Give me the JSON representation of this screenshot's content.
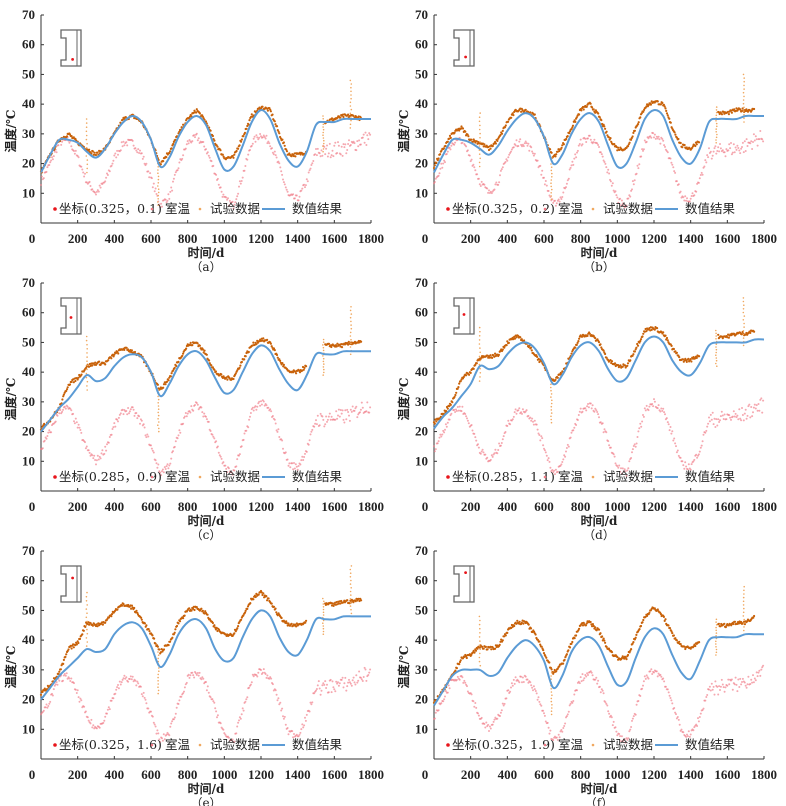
{
  "colors": {
    "measured": "#c8620a",
    "room": "#f07a86",
    "numerical": "#5b9bd5",
    "point": "#e8151b",
    "axis": "#333333",
    "inset": "#666666"
  },
  "legend": {
    "room_label": "室温",
    "measured_label": "试验数据",
    "numerical_label": "数值结果"
  },
  "chart_data": [
    {
      "id": "a",
      "type": "line",
      "caption": "（a）",
      "xlabel": "时间/d",
      "ylabel": "温度/℃",
      "xlim": [
        0,
        1800
      ],
      "ylim": [
        0,
        70
      ],
      "xticks": [
        0,
        200,
        400,
        600,
        800,
        1000,
        1200,
        1400,
        1600,
        1800
      ],
      "yticks": [
        10,
        20,
        30,
        40,
        50,
        60,
        70
      ],
      "legend_position": "bottom",
      "point_label": "坐标(0.325，0.1)",
      "inset_point": [
        0.7,
        0.88
      ],
      "x": [
        0,
        50,
        100,
        150,
        200,
        250,
        300,
        350,
        400,
        450,
        500,
        550,
        600,
        650,
        700,
        750,
        800,
        850,
        900,
        950,
        1000,
        1050,
        1100,
        1150,
        1200,
        1250,
        1300,
        1350,
        1400,
        1450,
        1500,
        1550,
        1600,
        1650,
        1700,
        1750,
        1800
      ],
      "series": [
        {
          "name": "试验数据",
          "values": [
            17,
            23,
            28,
            30,
            27,
            25,
            23,
            25,
            30,
            35,
            36,
            34,
            28,
            20,
            24,
            30,
            35,
            38,
            34,
            27,
            22,
            22,
            29,
            36,
            39,
            38,
            30,
            23,
            23,
            24,
            null,
            34,
            35,
            36,
            36,
            35,
            null
          ]
        },
        {
          "name": "室温",
          "values": [
            14,
            20,
            27,
            28,
            22,
            14,
            10,
            14,
            22,
            27,
            27,
            23,
            15,
            6,
            9,
            19,
            27,
            29,
            25,
            17,
            8,
            6,
            16,
            27,
            30,
            27,
            19,
            9,
            8,
            14,
            24,
            24,
            25,
            25,
            26,
            28,
            29
          ]
        },
        {
          "name": "数值结果",
          "values": [
            17,
            23,
            28,
            28,
            27,
            24,
            22,
            25,
            30,
            34,
            36,
            34,
            28,
            19,
            22,
            29,
            34,
            36,
            33,
            25,
            18,
            19,
            26,
            34,
            38,
            35,
            27,
            21,
            19,
            24,
            33,
            34,
            34,
            35,
            35,
            35,
            35
          ]
        }
      ]
    },
    {
      "id": "b",
      "type": "line",
      "caption": "（b）",
      "xlabel": "时间/d",
      "ylabel": "温度/℃",
      "xlim": [
        0,
        1800
      ],
      "ylim": [
        0,
        70
      ],
      "xticks": [
        0,
        200,
        400,
        600,
        800,
        1000,
        1200,
        1400,
        1600,
        1800
      ],
      "yticks": [
        10,
        20,
        30,
        40,
        50,
        60,
        70
      ],
      "legend_position": "bottom",
      "point_label": "坐标(0.325，0.2)",
      "inset_point": [
        0.7,
        0.8
      ],
      "x": [
        0,
        50,
        100,
        150,
        200,
        250,
        300,
        350,
        400,
        450,
        500,
        550,
        600,
        650,
        700,
        750,
        800,
        850,
        900,
        950,
        1000,
        1050,
        1100,
        1150,
        1200,
        1250,
        1300,
        1350,
        1400,
        1450,
        1500,
        1550,
        1600,
        1650,
        1700,
        1750,
        1800
      ],
      "series": [
        {
          "name": "试验数据",
          "values": [
            19,
            25,
            30,
            32,
            28,
            27,
            25,
            28,
            34,
            38,
            38,
            36,
            29,
            22,
            26,
            32,
            38,
            40,
            36,
            29,
            25,
            25,
            32,
            39,
            41,
            40,
            32,
            26,
            25,
            28,
            null,
            37,
            37,
            38,
            38,
            38,
            null
          ]
        },
        {
          "name": "室温",
          "values": [
            14,
            20,
            27,
            28,
            22,
            14,
            10,
            14,
            22,
            27,
            27,
            23,
            15,
            6,
            9,
            19,
            27,
            29,
            25,
            17,
            8,
            6,
            16,
            27,
            30,
            27,
            19,
            9,
            8,
            14,
            24,
            24,
            25,
            25,
            26,
            28,
            29
          ]
        },
        {
          "name": "数值结果",
          "values": [
            17,
            23,
            28,
            28,
            27,
            25,
            23,
            26,
            31,
            35,
            37,
            35,
            29,
            20,
            23,
            30,
            35,
            37,
            34,
            26,
            19,
            20,
            27,
            35,
            38,
            36,
            28,
            22,
            20,
            25,
            34,
            35,
            35,
            35,
            36,
            36,
            36
          ]
        }
      ]
    },
    {
      "id": "c",
      "type": "line",
      "caption": "（c）",
      "xlabel": "时间/d",
      "ylabel": "温度/℃",
      "xlim": [
        0,
        1800
      ],
      "ylim": [
        0,
        70
      ],
      "xticks": [
        0,
        200,
        400,
        600,
        800,
        1000,
        1200,
        1400,
        1600,
        1800
      ],
      "yticks": [
        10,
        20,
        30,
        40,
        50,
        60,
        70
      ],
      "legend_position": "bottom",
      "point_label": "坐标(0.285，0.9)",
      "inset_point": [
        0.5,
        0.55
      ],
      "x": [
        0,
        50,
        100,
        150,
        200,
        250,
        300,
        350,
        400,
        450,
        500,
        550,
        600,
        650,
        700,
        750,
        800,
        850,
        900,
        950,
        1000,
        1050,
        1100,
        1150,
        1200,
        1250,
        1300,
        1350,
        1400,
        1450,
        1500,
        1550,
        1600,
        1650,
        1700,
        1750,
        1800
      ],
      "series": [
        {
          "name": "试验数据",
          "values": [
            21,
            24,
            28,
            36,
            38,
            42,
            43,
            43,
            46,
            48,
            47,
            45,
            40,
            34,
            38,
            44,
            49,
            50,
            46,
            40,
            38,
            38,
            44,
            49,
            51,
            50,
            44,
            40,
            40,
            42,
            null,
            49,
            49,
            49,
            50,
            50,
            null
          ]
        },
        {
          "name": "室温",
          "values": [
            14,
            20,
            27,
            28,
            22,
            14,
            10,
            14,
            22,
            27,
            27,
            23,
            15,
            6,
            9,
            19,
            27,
            29,
            25,
            17,
            8,
            6,
            16,
            27,
            30,
            27,
            19,
            9,
            8,
            14,
            24,
            24,
            25,
            25,
            26,
            28,
            29
          ]
        },
        {
          "name": "数值结果",
          "values": [
            20,
            24,
            28,
            31,
            35,
            39,
            37,
            38,
            42,
            45,
            46,
            45,
            40,
            32,
            36,
            42,
            46,
            47,
            44,
            38,
            33,
            34,
            40,
            46,
            49,
            47,
            41,
            36,
            34,
            39,
            46,
            46,
            46,
            47,
            47,
            47,
            47
          ]
        }
      ]
    },
    {
      "id": "d",
      "type": "line",
      "caption": "（d）",
      "xlabel": "时间/d",
      "ylabel": "温度/℃",
      "xlim": [
        0,
        1800
      ],
      "ylim": [
        0,
        70
      ],
      "xticks": [
        0,
        200,
        400,
        600,
        800,
        1000,
        1200,
        1400,
        1600,
        1800
      ],
      "yticks": [
        10,
        20,
        30,
        40,
        50,
        60,
        70
      ],
      "legend_position": "bottom",
      "point_label": "坐标(0.285，1.1)",
      "inset_point": [
        0.5,
        0.45
      ],
      "x": [
        0,
        50,
        100,
        150,
        200,
        250,
        300,
        350,
        400,
        450,
        500,
        550,
        600,
        650,
        700,
        750,
        800,
        850,
        900,
        950,
        1000,
        1050,
        1100,
        1150,
        1200,
        1250,
        1300,
        1350,
        1400,
        1450,
        1500,
        1550,
        1600,
        1650,
        1700,
        1750,
        1800
      ],
      "series": [
        {
          "name": "试验数据",
          "values": [
            23,
            26,
            30,
            38,
            40,
            45,
            45,
            46,
            50,
            52,
            50,
            46,
            42,
            37,
            40,
            46,
            52,
            53,
            50,
            44,
            42,
            42,
            48,
            54,
            55,
            53,
            48,
            44,
            44,
            46,
            null,
            52,
            52,
            53,
            53,
            54,
            null
          ]
        },
        {
          "name": "室温",
          "values": [
            14,
            20,
            27,
            28,
            22,
            14,
            10,
            14,
            22,
            27,
            27,
            23,
            15,
            6,
            9,
            19,
            27,
            29,
            25,
            17,
            8,
            6,
            16,
            27,
            30,
            27,
            19,
            9,
            8,
            14,
            24,
            24,
            25,
            25,
            26,
            28,
            29
          ]
        },
        {
          "name": "数值结果",
          "values": [
            21,
            25,
            28,
            32,
            36,
            42,
            41,
            42,
            46,
            49,
            50,
            48,
            43,
            36,
            39,
            45,
            49,
            50,
            47,
            41,
            37,
            38,
            44,
            50,
            52,
            50,
            44,
            40,
            39,
            43,
            49,
            50,
            50,
            50,
            50,
            51,
            51
          ]
        }
      ]
    },
    {
      "id": "e",
      "type": "line",
      "caption": "（e）",
      "xlabel": "时间/d",
      "ylabel": "温度/℃",
      "xlim": [
        0,
        1800
      ],
      "ylim": [
        0,
        70
      ],
      "xticks": [
        0,
        200,
        400,
        600,
        800,
        1000,
        1200,
        1400,
        1600,
        1800
      ],
      "yticks": [
        10,
        20,
        30,
        40,
        50,
        60,
        70
      ],
      "legend_position": "bottom",
      "point_label": "坐标(0.325，1.6)",
      "inset_point": [
        0.7,
        0.3
      ],
      "x": [
        0,
        50,
        100,
        150,
        200,
        250,
        300,
        350,
        400,
        450,
        500,
        550,
        600,
        650,
        700,
        750,
        800,
        850,
        900,
        950,
        1000,
        1050,
        1100,
        1150,
        1200,
        1250,
        1300,
        1350,
        1400,
        1450,
        1500,
        1550,
        1600,
        1650,
        1700,
        1750,
        1800
      ],
      "series": [
        {
          "name": "试验数据",
          "values": [
            22,
            25,
            29,
            37,
            39,
            46,
            45,
            46,
            50,
            52,
            51,
            47,
            42,
            36,
            39,
            46,
            50,
            51,
            49,
            44,
            42,
            42,
            48,
            54,
            56,
            53,
            48,
            45,
            45,
            46,
            null,
            52,
            52,
            53,
            53,
            54,
            null
          ]
        },
        {
          "name": "室温",
          "values": [
            14,
            20,
            27,
            28,
            22,
            14,
            10,
            14,
            22,
            27,
            27,
            23,
            15,
            6,
            9,
            19,
            27,
            29,
            25,
            17,
            8,
            6,
            16,
            27,
            30,
            27,
            19,
            9,
            8,
            14,
            24,
            24,
            25,
            25,
            26,
            28,
            29
          ]
        },
        {
          "name": "数值结果",
          "values": [
            20,
            24,
            28,
            31,
            34,
            37,
            36,
            37,
            42,
            45,
            46,
            44,
            38,
            31,
            35,
            42,
            46,
            47,
            44,
            37,
            33,
            34,
            41,
            47,
            50,
            48,
            41,
            36,
            35,
            40,
            47,
            47,
            47,
            48,
            48,
            48,
            48
          ]
        }
      ]
    },
    {
      "id": "f",
      "type": "line",
      "caption": "（f）",
      "xlabel": "时间/d",
      "ylabel": "温度/℃",
      "xlim": [
        0,
        1800
      ],
      "ylim": [
        0,
        70
      ],
      "xticks": [
        0,
        200,
        400,
        600,
        800,
        1000,
        1200,
        1400,
        1600,
        1800
      ],
      "yticks": [
        10,
        20,
        30,
        40,
        50,
        60,
        70
      ],
      "legend_position": "bottom",
      "point_label": "坐标(0.325，1.9)",
      "inset_point": [
        0.7,
        0.12
      ],
      "x": [
        0,
        50,
        100,
        150,
        200,
        250,
        300,
        350,
        400,
        450,
        500,
        550,
        600,
        650,
        700,
        750,
        800,
        850,
        900,
        950,
        1000,
        1050,
        1100,
        1150,
        1200,
        1250,
        1300,
        1350,
        1400,
        1450,
        1500,
        1550,
        1600,
        1650,
        1700,
        1750,
        1800
      ],
      "series": [
        {
          "name": "试验数据",
          "values": [
            19,
            23,
            28,
            34,
            35,
            38,
            37,
            38,
            43,
            46,
            46,
            42,
            36,
            29,
            32,
            39,
            45,
            46,
            43,
            37,
            34,
            34,
            41,
            48,
            51,
            48,
            42,
            38,
            37,
            40,
            null,
            45,
            45,
            46,
            46,
            48,
            null
          ]
        },
        {
          "name": "室温",
          "values": [
            14,
            20,
            27,
            28,
            22,
            14,
            10,
            14,
            22,
            27,
            27,
            23,
            15,
            6,
            9,
            19,
            27,
            29,
            25,
            17,
            8,
            6,
            16,
            27,
            30,
            27,
            19,
            9,
            8,
            14,
            24,
            24,
            25,
            25,
            26,
            28,
            29
          ]
        },
        {
          "name": "数值结果",
          "values": [
            18,
            23,
            28,
            30,
            30,
            30,
            28,
            29,
            34,
            38,
            40,
            38,
            33,
            24,
            28,
            36,
            40,
            41,
            38,
            31,
            25,
            26,
            34,
            41,
            44,
            42,
            35,
            29,
            27,
            33,
            40,
            41,
            41,
            41,
            42,
            42,
            42
          ]
        }
      ]
    }
  ]
}
